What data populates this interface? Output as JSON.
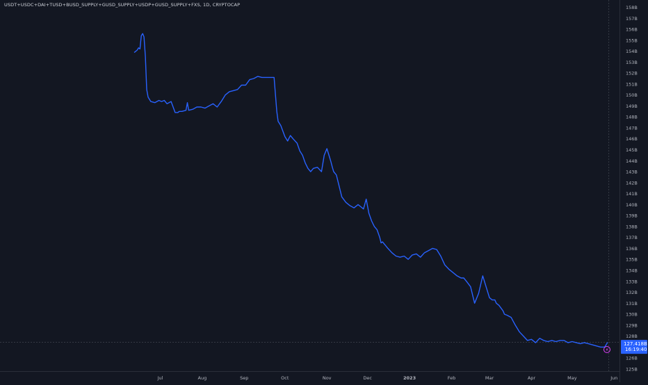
{
  "header": {
    "symbol_title": "USDT+USDC+DAI+TUSD+BUSD_SUPPLY+GUSD_SUPPLY+USDP+GUSD_SUPPLY+FXS, 1D, CRYPTOCAP"
  },
  "colors": {
    "background": "#131722",
    "line": "#2962ff",
    "price_label_bg": "#2962ff",
    "axis_text": "#b2b5be",
    "crosshair": "#363a45",
    "lightning_icon": "#e040fb"
  },
  "price_label": {
    "value": "127.418B",
    "countdown": "16:19:40"
  },
  "icons": {
    "bottom_right": "lightning-icon"
  },
  "chart_data": {
    "type": "line",
    "title": "",
    "xlabel": "",
    "ylabel": "",
    "y_unit": "B",
    "ylim": [
      124.7,
      158.5
    ],
    "xlim": [
      "2022-06-09",
      "2023-06-05"
    ],
    "grid": false,
    "legend": "none",
    "x_ticks": [
      {
        "date": "2022-07-01",
        "label": "Jul"
      },
      {
        "date": "2022-08-01",
        "label": "Aug"
      },
      {
        "date": "2022-09-01",
        "label": "Sep"
      },
      {
        "date": "2022-10-01",
        "label": "Oct"
      },
      {
        "date": "2022-11-01",
        "label": "Nov"
      },
      {
        "date": "2022-12-01",
        "label": "Dec"
      },
      {
        "date": "2023-01-01",
        "label": "2023"
      },
      {
        "date": "2023-02-01",
        "label": "Feb"
      },
      {
        "date": "2023-03-01",
        "label": "Mar"
      },
      {
        "date": "2023-04-01",
        "label": "Apr"
      },
      {
        "date": "2023-05-01",
        "label": "May"
      },
      {
        "date": "2023-06-01",
        "label": "Jun"
      }
    ],
    "y_ticks": [
      {
        "value": 158,
        "label": "158B"
      },
      {
        "value": 157,
        "label": "157B"
      },
      {
        "value": 156,
        "label": "156B"
      },
      {
        "value": 155,
        "label": "155B"
      },
      {
        "value": 154,
        "label": "154B"
      },
      {
        "value": 153,
        "label": "153B"
      },
      {
        "value": 152,
        "label": "152B"
      },
      {
        "value": 151,
        "label": "151B"
      },
      {
        "value": 150,
        "label": "150B"
      },
      {
        "value": 149,
        "label": "149B"
      },
      {
        "value": 148,
        "label": "148B"
      },
      {
        "value": 147,
        "label": "147B"
      },
      {
        "value": 146,
        "label": "146B"
      },
      {
        "value": 145,
        "label": "145B"
      },
      {
        "value": 144,
        "label": "144B"
      },
      {
        "value": 143,
        "label": "143B"
      },
      {
        "value": 142,
        "label": "142B"
      },
      {
        "value": 141,
        "label": "141B"
      },
      {
        "value": 140,
        "label": "140B"
      },
      {
        "value": 139,
        "label": "139B"
      },
      {
        "value": 138,
        "label": "138B"
      },
      {
        "value": 137,
        "label": "137B"
      },
      {
        "value": 136,
        "label": "136B"
      },
      {
        "value": 135,
        "label": "135B"
      },
      {
        "value": 134,
        "label": "134B"
      },
      {
        "value": 133,
        "label": "133B"
      },
      {
        "value": 132,
        "label": "132B"
      },
      {
        "value": 131,
        "label": "131B"
      },
      {
        "value": 130,
        "label": "130B"
      },
      {
        "value": 129,
        "label": "129B"
      },
      {
        "value": 128,
        "label": "128B"
      },
      {
        "value": 126,
        "label": "126B"
      },
      {
        "value": 125,
        "label": "125B"
      }
    ],
    "series": [
      {
        "color": "#2962ff",
        "x": [
          "2022-06-12",
          "2022-06-14",
          "2022-06-15",
          "2022-06-16",
          "2022-06-17",
          "2022-06-18",
          "2022-06-19",
          "2022-06-20",
          "2022-06-21",
          "2022-06-22",
          "2022-06-24",
          "2022-06-27",
          "2022-06-30",
          "2022-07-02",
          "2022-07-04",
          "2022-07-06",
          "2022-07-09",
          "2022-07-12",
          "2022-07-14",
          "2022-07-15",
          "2022-07-17",
          "2022-07-20",
          "2022-07-21",
          "2022-07-22",
          "2022-07-25",
          "2022-07-28",
          "2022-07-31",
          "2022-08-03",
          "2022-08-06",
          "2022-08-09",
          "2022-08-12",
          "2022-08-15",
          "2022-08-18",
          "2022-08-21",
          "2022-08-24",
          "2022-08-27",
          "2022-08-30",
          "2022-09-02",
          "2022-09-05",
          "2022-09-08",
          "2022-09-11",
          "2022-09-14",
          "2022-09-17",
          "2022-09-20",
          "2022-09-23",
          "2022-09-25",
          "2022-09-26",
          "2022-09-28",
          "2022-10-01",
          "2022-10-03",
          "2022-10-05",
          "2022-10-07",
          "2022-10-10",
          "2022-10-12",
          "2022-10-14",
          "2022-10-16",
          "2022-10-18",
          "2022-10-20",
          "2022-10-22",
          "2022-10-25",
          "2022-10-28",
          "2022-10-30",
          "2022-11-01",
          "2022-11-03",
          "2022-11-04",
          "2022-11-05",
          "2022-11-06",
          "2022-11-08",
          "2022-11-10",
          "2022-11-12",
          "2022-11-15",
          "2022-11-18",
          "2022-11-21",
          "2022-11-24",
          "2022-11-26",
          "2022-11-28",
          "2022-11-30",
          "2022-12-02",
          "2022-12-04",
          "2022-12-06",
          "2022-12-08",
          "2022-12-10",
          "2022-12-11",
          "2022-12-12",
          "2022-12-14",
          "2022-12-16",
          "2022-12-19",
          "2022-12-22",
          "2022-12-25",
          "2022-12-28",
          "2022-12-31",
          "2023-01-03",
          "2023-01-06",
          "2023-01-09",
          "2023-01-12",
          "2023-01-15",
          "2023-01-18",
          "2023-01-21",
          "2023-01-24",
          "2023-01-27",
          "2023-01-30",
          "2023-02-02",
          "2023-02-05",
          "2023-02-08",
          "2023-02-10",
          "2023-02-12",
          "2023-02-15",
          "2023-02-18",
          "2023-02-21",
          "2023-02-24",
          "2023-02-27",
          "2023-03-01",
          "2023-03-03",
          "2023-03-05",
          "2023-03-06",
          "2023-03-08",
          "2023-03-11",
          "2023-03-12",
          "2023-03-14",
          "2023-03-17",
          "2023-03-20",
          "2023-03-23",
          "2023-03-26",
          "2023-03-29",
          "2023-04-01",
          "2023-04-04",
          "2023-04-07",
          "2023-04-10",
          "2023-04-13",
          "2023-04-16",
          "2023-04-19",
          "2023-04-22",
          "2023-04-25",
          "2023-04-28",
          "2023-05-01",
          "2023-05-04",
          "2023-05-07",
          "2023-05-10",
          "2023-05-13",
          "2023-05-16",
          "2023-05-19",
          "2023-05-22",
          "2023-05-25",
          "2023-05-27"
        ],
        "y": [
          153.9,
          154.1,
          154.3,
          154.2,
          155.4,
          155.6,
          155.3,
          153.5,
          150.5,
          149.8,
          149.4,
          149.3,
          149.5,
          149.4,
          149.5,
          149.2,
          149.4,
          148.4,
          148.4,
          148.5,
          148.5,
          148.6,
          149.3,
          148.6,
          148.7,
          148.9,
          148.9,
          148.8,
          149.0,
          149.2,
          148.9,
          149.4,
          150.0,
          150.3,
          150.4,
          150.5,
          150.9,
          150.9,
          151.4,
          151.5,
          151.7,
          151.6,
          151.6,
          151.6,
          151.6,
          148.5,
          147.6,
          147.2,
          146.2,
          145.8,
          146.3,
          146.0,
          145.6,
          144.9,
          144.5,
          143.8,
          143.3,
          143.0,
          143.3,
          143.4,
          143.0,
          144.5,
          145.1,
          144.3,
          143.9,
          143.4,
          143.0,
          142.7,
          141.7,
          140.7,
          140.2,
          139.9,
          139.7,
          140.0,
          139.8,
          139.6,
          140.5,
          139.2,
          138.5,
          138.0,
          137.7,
          137.0,
          136.5,
          136.6,
          136.3,
          136.0,
          135.6,
          135.3,
          135.2,
          135.3,
          135.0,
          135.4,
          135.5,
          135.2,
          135.6,
          135.8,
          136.0,
          135.9,
          135.3,
          134.5,
          134.1,
          133.8,
          133.5,
          133.3,
          133.3,
          133.0,
          132.5,
          131.0,
          131.9,
          133.5,
          132.3,
          131.5,
          131.3,
          131.3,
          131.0,
          130.8,
          130.3,
          130.0,
          129.9,
          129.7,
          129.0,
          128.4,
          128.0,
          127.6,
          127.7,
          127.4,
          127.8,
          127.6,
          127.5,
          127.6,
          127.5,
          127.6,
          127.6,
          127.4,
          127.5,
          127.4,
          127.3,
          127.4,
          127.3,
          127.2,
          127.1,
          127.0,
          127.0,
          127.4
        ]
      }
    ]
  }
}
